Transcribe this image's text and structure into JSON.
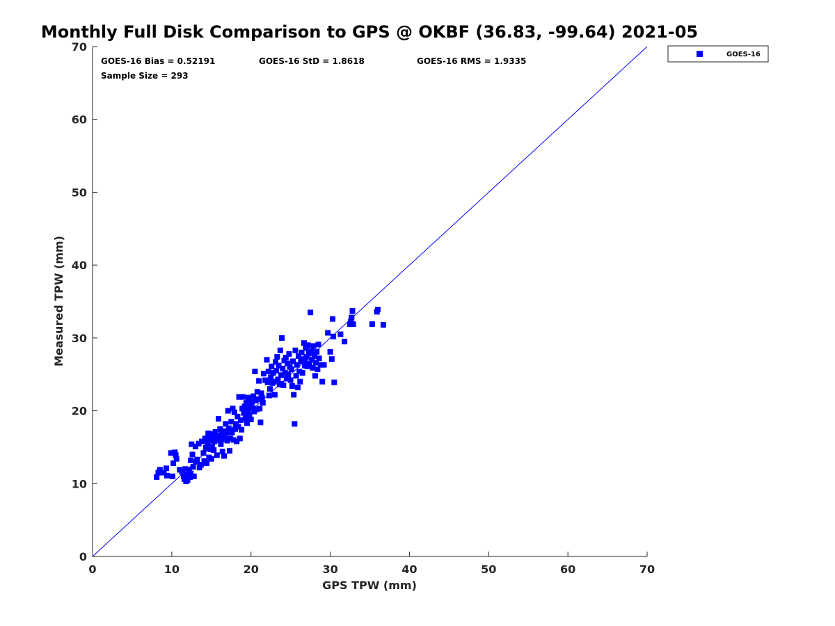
{
  "chart_data": {
    "type": "scatter",
    "title": "Monthly Full Disk Comparison to GPS @ OKBF (36.83, -99.64) 2021-05",
    "xlabel": "GPS TPW (mm)",
    "ylabel": "Measured TPW (mm)",
    "xlim": [
      0,
      70
    ],
    "ylim": [
      0,
      70
    ],
    "xticks": [
      "0",
      "10",
      "20",
      "30",
      "40",
      "50",
      "60",
      "70"
    ],
    "yticks": [
      "0",
      "10",
      "20",
      "30",
      "40",
      "50",
      "60",
      "70"
    ],
    "grid": false,
    "legend_position": "outside-top-right",
    "reference_line": {
      "x": [
        0,
        70
      ],
      "y": [
        0,
        70
      ],
      "color": "#0000ff"
    },
    "stats": {
      "bias": "GOES-16 Bias = 0.52191",
      "std": "GOES-16 StD = 1.8618",
      "rms": "GOES-16 RMS = 1.9335",
      "sample": "Sample Size = 293"
    },
    "series": [
      {
        "name": "GOES-16",
        "color": "#0000ff",
        "marker": "square",
        "points": [
          [
            8.1,
            10.9
          ],
          [
            8.3,
            11.5
          ],
          [
            8.5,
            11.9
          ],
          [
            9.0,
            11.5
          ],
          [
            9.3,
            12.1
          ],
          [
            9.4,
            11.1
          ],
          [
            9.9,
            14.2
          ],
          [
            10.1,
            11.0
          ],
          [
            10.2,
            12.8
          ],
          [
            10.4,
            14.3
          ],
          [
            10.5,
            13.9
          ],
          [
            10.6,
            13.4
          ],
          [
            11.0,
            11.9
          ],
          [
            11.3,
            11.6
          ],
          [
            11.5,
            11.0
          ],
          [
            11.6,
            10.6
          ],
          [
            11.7,
            12.0
          ],
          [
            11.8,
            10.3
          ],
          [
            11.9,
            11.2
          ],
          [
            12.0,
            10.5
          ],
          [
            12.2,
            11.9
          ],
          [
            12.3,
            10.9
          ],
          [
            12.4,
            11.4
          ],
          [
            12.4,
            13.2
          ],
          [
            12.5,
            15.4
          ],
          [
            12.6,
            14.0
          ],
          [
            12.7,
            12.3
          ],
          [
            12.8,
            11.0
          ],
          [
            13.0,
            15.1
          ],
          [
            13.2,
            13.3
          ],
          [
            13.4,
            15.5
          ],
          [
            13.5,
            12.2
          ],
          [
            13.7,
            12.6
          ],
          [
            13.8,
            15.8
          ],
          [
            14.0,
            14.2
          ],
          [
            14.1,
            13.1
          ],
          [
            14.2,
            16.2
          ],
          [
            14.3,
            14.9
          ],
          [
            14.4,
            12.8
          ],
          [
            14.5,
            15.5
          ],
          [
            14.6,
            16.9
          ],
          [
            14.7,
            13.6
          ],
          [
            14.8,
            15.9
          ],
          [
            14.9,
            16.4
          ],
          [
            15.0,
            13.4
          ],
          [
            15.1,
            15.1
          ],
          [
            15.2,
            16.8
          ],
          [
            15.3,
            14.6
          ],
          [
            15.4,
            15.8
          ],
          [
            15.5,
            17.1
          ],
          [
            15.6,
            16.2
          ],
          [
            15.7,
            13.9
          ],
          [
            15.8,
            16.6
          ],
          [
            15.9,
            18.9
          ],
          [
            16.0,
            16.0
          ],
          [
            16.1,
            17.5
          ],
          [
            16.2,
            15.4
          ],
          [
            16.3,
            16.8
          ],
          [
            16.4,
            14.4
          ],
          [
            16.5,
            17.2
          ],
          [
            16.6,
            13.8
          ],
          [
            16.7,
            16.3
          ],
          [
            16.8,
            18.2
          ],
          [
            16.9,
            17.0
          ],
          [
            17.0,
            15.9
          ],
          [
            17.1,
            20.0
          ],
          [
            17.2,
            17.6
          ],
          [
            17.3,
            14.5
          ],
          [
            17.4,
            16.2
          ],
          [
            17.5,
            18.5
          ],
          [
            17.6,
            17.0
          ],
          [
            17.7,
            20.3
          ],
          [
            17.8,
            16.0
          ],
          [
            17.9,
            19.8
          ],
          [
            18.0,
            17.5
          ],
          [
            18.1,
            18.2
          ],
          [
            18.2,
            15.8
          ],
          [
            18.3,
            19.2
          ],
          [
            18.4,
            17.8
          ],
          [
            18.5,
            21.9
          ],
          [
            18.6,
            16.2
          ],
          [
            18.7,
            18.7
          ],
          [
            18.8,
            17.4
          ],
          [
            18.9,
            20.3
          ],
          [
            19.0,
            21.9
          ],
          [
            19.1,
            19.7
          ],
          [
            19.2,
            20.6
          ],
          [
            19.3,
            18.9
          ],
          [
            19.4,
            21.1
          ],
          [
            19.5,
            18.3
          ],
          [
            19.6,
            20.1
          ],
          [
            19.7,
            21.8
          ],
          [
            19.8,
            19.5
          ],
          [
            19.9,
            20.7
          ],
          [
            20.0,
            18.8
          ],
          [
            20.1,
            21.2
          ],
          [
            20.2,
            20.4
          ],
          [
            20.3,
            22.0
          ],
          [
            20.4,
            19.9
          ],
          [
            20.5,
            25.4
          ],
          [
            20.6,
            21.4
          ],
          [
            20.7,
            20.2
          ],
          [
            20.8,
            22.6
          ],
          [
            20.9,
            21.6
          ],
          [
            21.0,
            24.1
          ],
          [
            21.1,
            20.3
          ],
          [
            21.2,
            18.4
          ],
          [
            21.3,
            22.4
          ],
          [
            21.4,
            21.8
          ],
          [
            21.6,
            25.1
          ],
          [
            21.8,
            24.2
          ],
          [
            22.0,
            27.0
          ],
          [
            22.1,
            23.9
          ],
          [
            22.2,
            25.4
          ],
          [
            22.4,
            23.0
          ],
          [
            22.5,
            24.6
          ],
          [
            22.6,
            26.1
          ],
          [
            22.7,
            23.8
          ],
          [
            22.8,
            25.2
          ],
          [
            22.9,
            24.0
          ],
          [
            23.0,
            22.2
          ],
          [
            23.1,
            26.7
          ],
          [
            23.2,
            25.5
          ],
          [
            23.3,
            27.4
          ],
          [
            23.4,
            24.3
          ],
          [
            23.5,
            26.2
          ],
          [
            23.6,
            23.6
          ],
          [
            23.7,
            28.3
          ],
          [
            23.8,
            24.9
          ],
          [
            23.9,
            30.0
          ],
          [
            24.0,
            25.8
          ],
          [
            24.1,
            23.5
          ],
          [
            24.2,
            26.9
          ],
          [
            24.3,
            25.2
          ],
          [
            24.4,
            27.3
          ],
          [
            24.5,
            24.4
          ],
          [
            24.6,
            26.5
          ],
          [
            24.7,
            25.0
          ],
          [
            24.8,
            27.8
          ],
          [
            24.9,
            26.0
          ],
          [
            25.0,
            24.2
          ],
          [
            25.1,
            25.7
          ],
          [
            25.2,
            23.4
          ],
          [
            25.3,
            26.8
          ],
          [
            25.4,
            22.2
          ],
          [
            25.5,
            18.2
          ],
          [
            25.6,
            28.3
          ],
          [
            25.7,
            24.8
          ],
          [
            25.8,
            26.3
          ],
          [
            25.9,
            23.2
          ],
          [
            26.0,
            27.5
          ],
          [
            26.1,
            25.4
          ],
          [
            26.2,
            24.0
          ],
          [
            26.3,
            26.8
          ],
          [
            26.4,
            28.0
          ],
          [
            26.5,
            25.2
          ],
          [
            26.6,
            27.1
          ],
          [
            26.7,
            29.3
          ],
          [
            26.8,
            26.2
          ],
          [
            26.9,
            28.6
          ],
          [
            27.0,
            27.4
          ],
          [
            27.1,
            26.1
          ],
          [
            27.2,
            29.0
          ],
          [
            27.3,
            27.9
          ],
          [
            27.4,
            26.5
          ],
          [
            27.5,
            33.5
          ],
          [
            27.6,
            28.2
          ],
          [
            27.7,
            27.0
          ],
          [
            27.8,
            25.9
          ],
          [
            27.9,
            28.9
          ],
          [
            28.0,
            27.5
          ],
          [
            28.1,
            24.8
          ],
          [
            28.2,
            26.6
          ],
          [
            28.3,
            28.1
          ],
          [
            28.4,
            25.7
          ],
          [
            28.5,
            29.1
          ],
          [
            28.6,
            27.2
          ],
          [
            28.8,
            26.3
          ],
          [
            29.0,
            24.0
          ],
          [
            29.2,
            26.3
          ],
          [
            29.7,
            30.7
          ],
          [
            30.0,
            28.1
          ],
          [
            30.2,
            27.1
          ],
          [
            30.3,
            32.6
          ],
          [
            30.4,
            30.2
          ],
          [
            30.5,
            23.9
          ],
          [
            31.3,
            30.5
          ],
          [
            31.8,
            29.5
          ],
          [
            32.5,
            31.9
          ],
          [
            32.6,
            32.3
          ],
          [
            32.7,
            32.8
          ],
          [
            32.8,
            33.7
          ],
          [
            32.9,
            31.9
          ],
          [
            35.3,
            31.9
          ],
          [
            35.9,
            33.6
          ],
          [
            36.0,
            33.9
          ],
          [
            36.7,
            31.8
          ],
          [
            13.1,
            13.0
          ],
          [
            14.9,
            14.7
          ],
          [
            16.3,
            16.1
          ],
          [
            17.6,
            17.3
          ],
          [
            19.4,
            19.2
          ],
          [
            21.5,
            21.1
          ],
          [
            22.3,
            22.1
          ],
          [
            23.8,
            23.7
          ],
          [
            24.7,
            24.4
          ],
          [
            26.8,
            26.9
          ]
        ]
      }
    ]
  }
}
